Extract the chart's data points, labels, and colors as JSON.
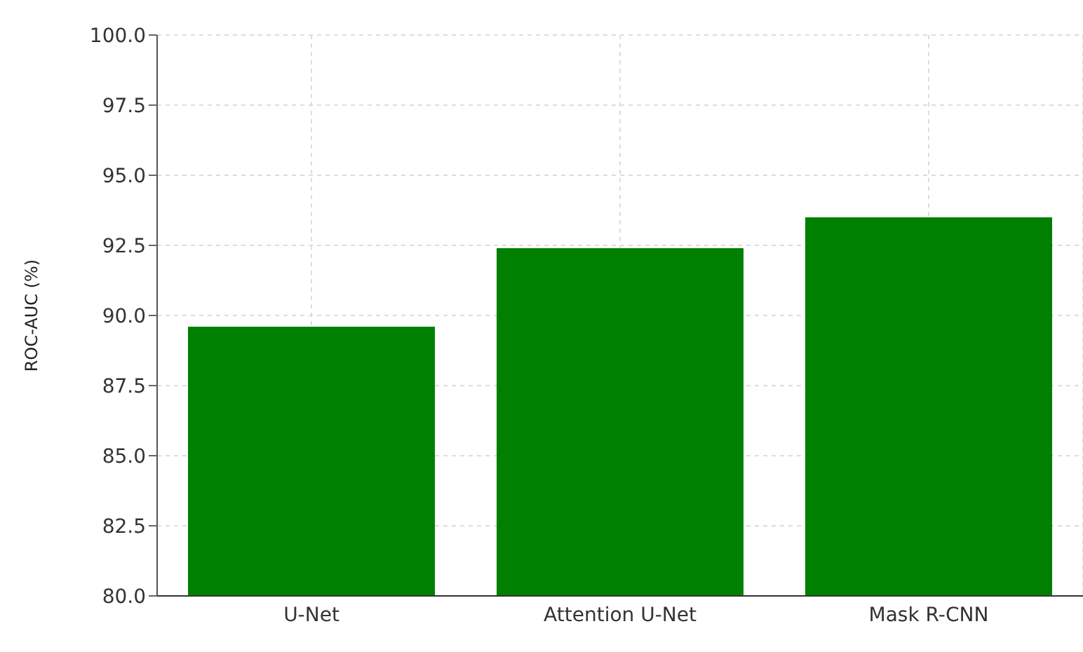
{
  "chart_data": {
    "type": "bar",
    "ylabel": "ROC-AUC (%)",
    "categories": [
      "U-Net",
      "Attention U-Net",
      "Mask R-CNN"
    ],
    "series": [
      {
        "color": "#008000",
        "values": [
          89.6,
          92.4,
          93.5
        ]
      }
    ],
    "ylim": [
      80,
      100
    ],
    "yticks": [
      {
        "value": 80,
        "label": "80.0"
      },
      {
        "value": 82.5,
        "label": "82.5"
      },
      {
        "value": 85,
        "label": "85.0"
      },
      {
        "value": 87.5,
        "label": "87.5"
      },
      {
        "value": 90,
        "label": "90.0"
      },
      {
        "value": 92.5,
        "label": "92.5"
      },
      {
        "value": 95,
        "label": "95.0"
      },
      {
        "value": 97.5,
        "label": "97.5"
      },
      {
        "value": 100,
        "label": "100.0"
      }
    ],
    "grid": true
  }
}
